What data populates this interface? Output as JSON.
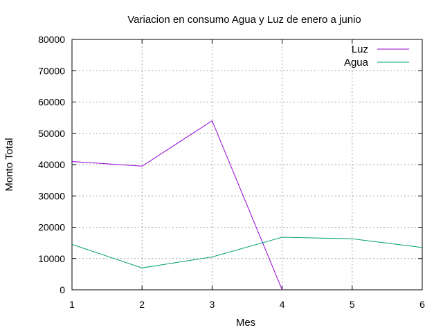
{
  "chart_data": {
    "type": "line",
    "title": "Variacion en consumo Agua y Luz de enero a junio",
    "xlabel": "Mes",
    "ylabel": "Monto Total",
    "xlim": [
      1,
      6
    ],
    "ylim": [
      0,
      80000
    ],
    "x_ticks": [
      "1",
      "2",
      "3",
      "4",
      "5",
      "6"
    ],
    "y_ticks": [
      "0",
      "10000",
      "20000",
      "30000",
      "40000",
      "50000",
      "60000",
      "70000",
      "80000"
    ],
    "grid": true,
    "legend_position": "top-right",
    "series": [
      {
        "name": "Luz",
        "color": "#9400d3",
        "x": [
          1,
          2,
          3,
          4
        ],
        "y": [
          41000,
          39500,
          54000,
          0
        ]
      },
      {
        "name": "Agua",
        "color": "#009e73",
        "x": [
          1,
          2,
          3,
          4,
          5,
          6
        ],
        "y": [
          14500,
          7000,
          10500,
          16800,
          16300,
          13500
        ]
      }
    ]
  }
}
